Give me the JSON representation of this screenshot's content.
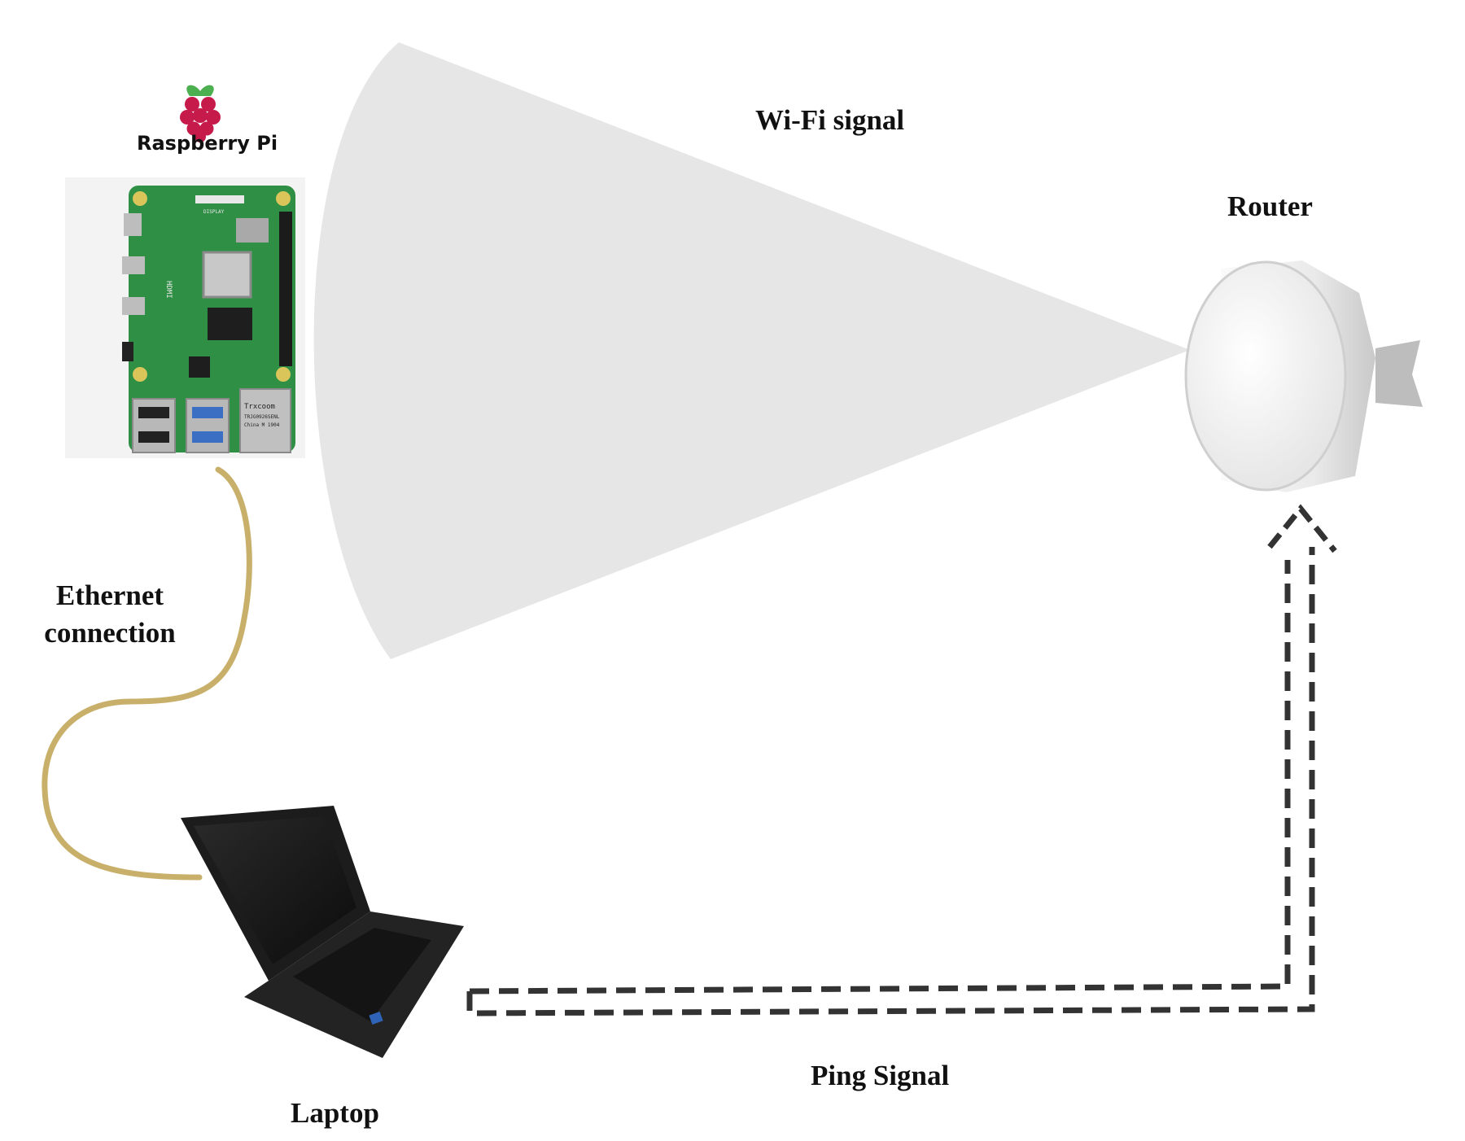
{
  "labels": {
    "raspberry_pi": "Raspberry Pi",
    "wifi_signal": "Wi-Fi signal",
    "router": "Router",
    "ethernet_line1": "Ethernet",
    "ethernet_line2": "connection",
    "laptop": "Laptop",
    "ping_signal": "Ping Signal"
  },
  "board_markings": {
    "chip_brand": "Trxcoom",
    "chip_part": "TRJG0926SENL",
    "chip_origin": "China M 1904",
    "hdmi": "HDMI",
    "display": "DISPLAY"
  },
  "colors": {
    "cable": "#c8b06b",
    "wifi_beam": "#e6e6e6",
    "ping_arrow": "#333333",
    "board_green": "#2f8f45",
    "raspberry_red": "#c51a4a",
    "router_white": "#eeeeee",
    "laptop_body": "#1c1c1c"
  }
}
